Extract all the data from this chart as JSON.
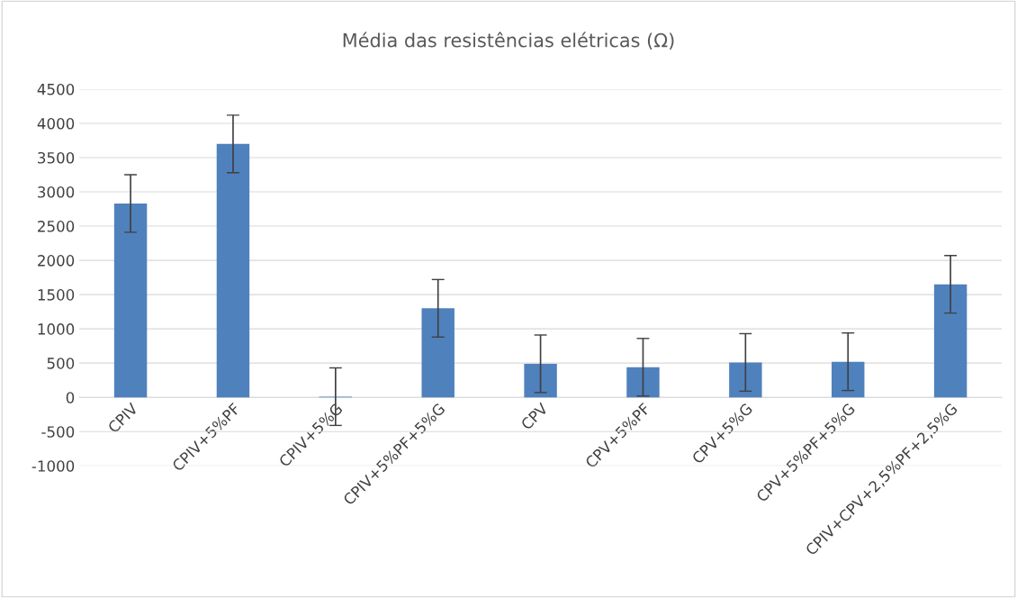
{
  "chart_data": {
    "type": "bar",
    "title": "Média das resistências elétricas (Ω)",
    "categories": [
      "CPIV",
      "CPIV+5%PF",
      "CPIV+5%G",
      "CPIV+5%PF+5%G",
      "CPV",
      "CPV+5%PF",
      "CPV+5%G",
      "CPV+5%PF+5%G",
      "CPIV+CPV+2,5%PF+2,5%G"
    ],
    "values": [
      2830,
      3700,
      10,
      1300,
      490,
      440,
      510,
      520,
      1650
    ],
    "errors": [
      420,
      420,
      420,
      420,
      420,
      420,
      420,
      420,
      420
    ],
    "color": "#4f81bd",
    "ylim": [
      -1000,
      4500
    ],
    "yticks": [
      -1000,
      -500,
      0,
      500,
      1000,
      1500,
      2000,
      2500,
      3000,
      3500,
      4000,
      4500
    ],
    "grid": "y"
  }
}
